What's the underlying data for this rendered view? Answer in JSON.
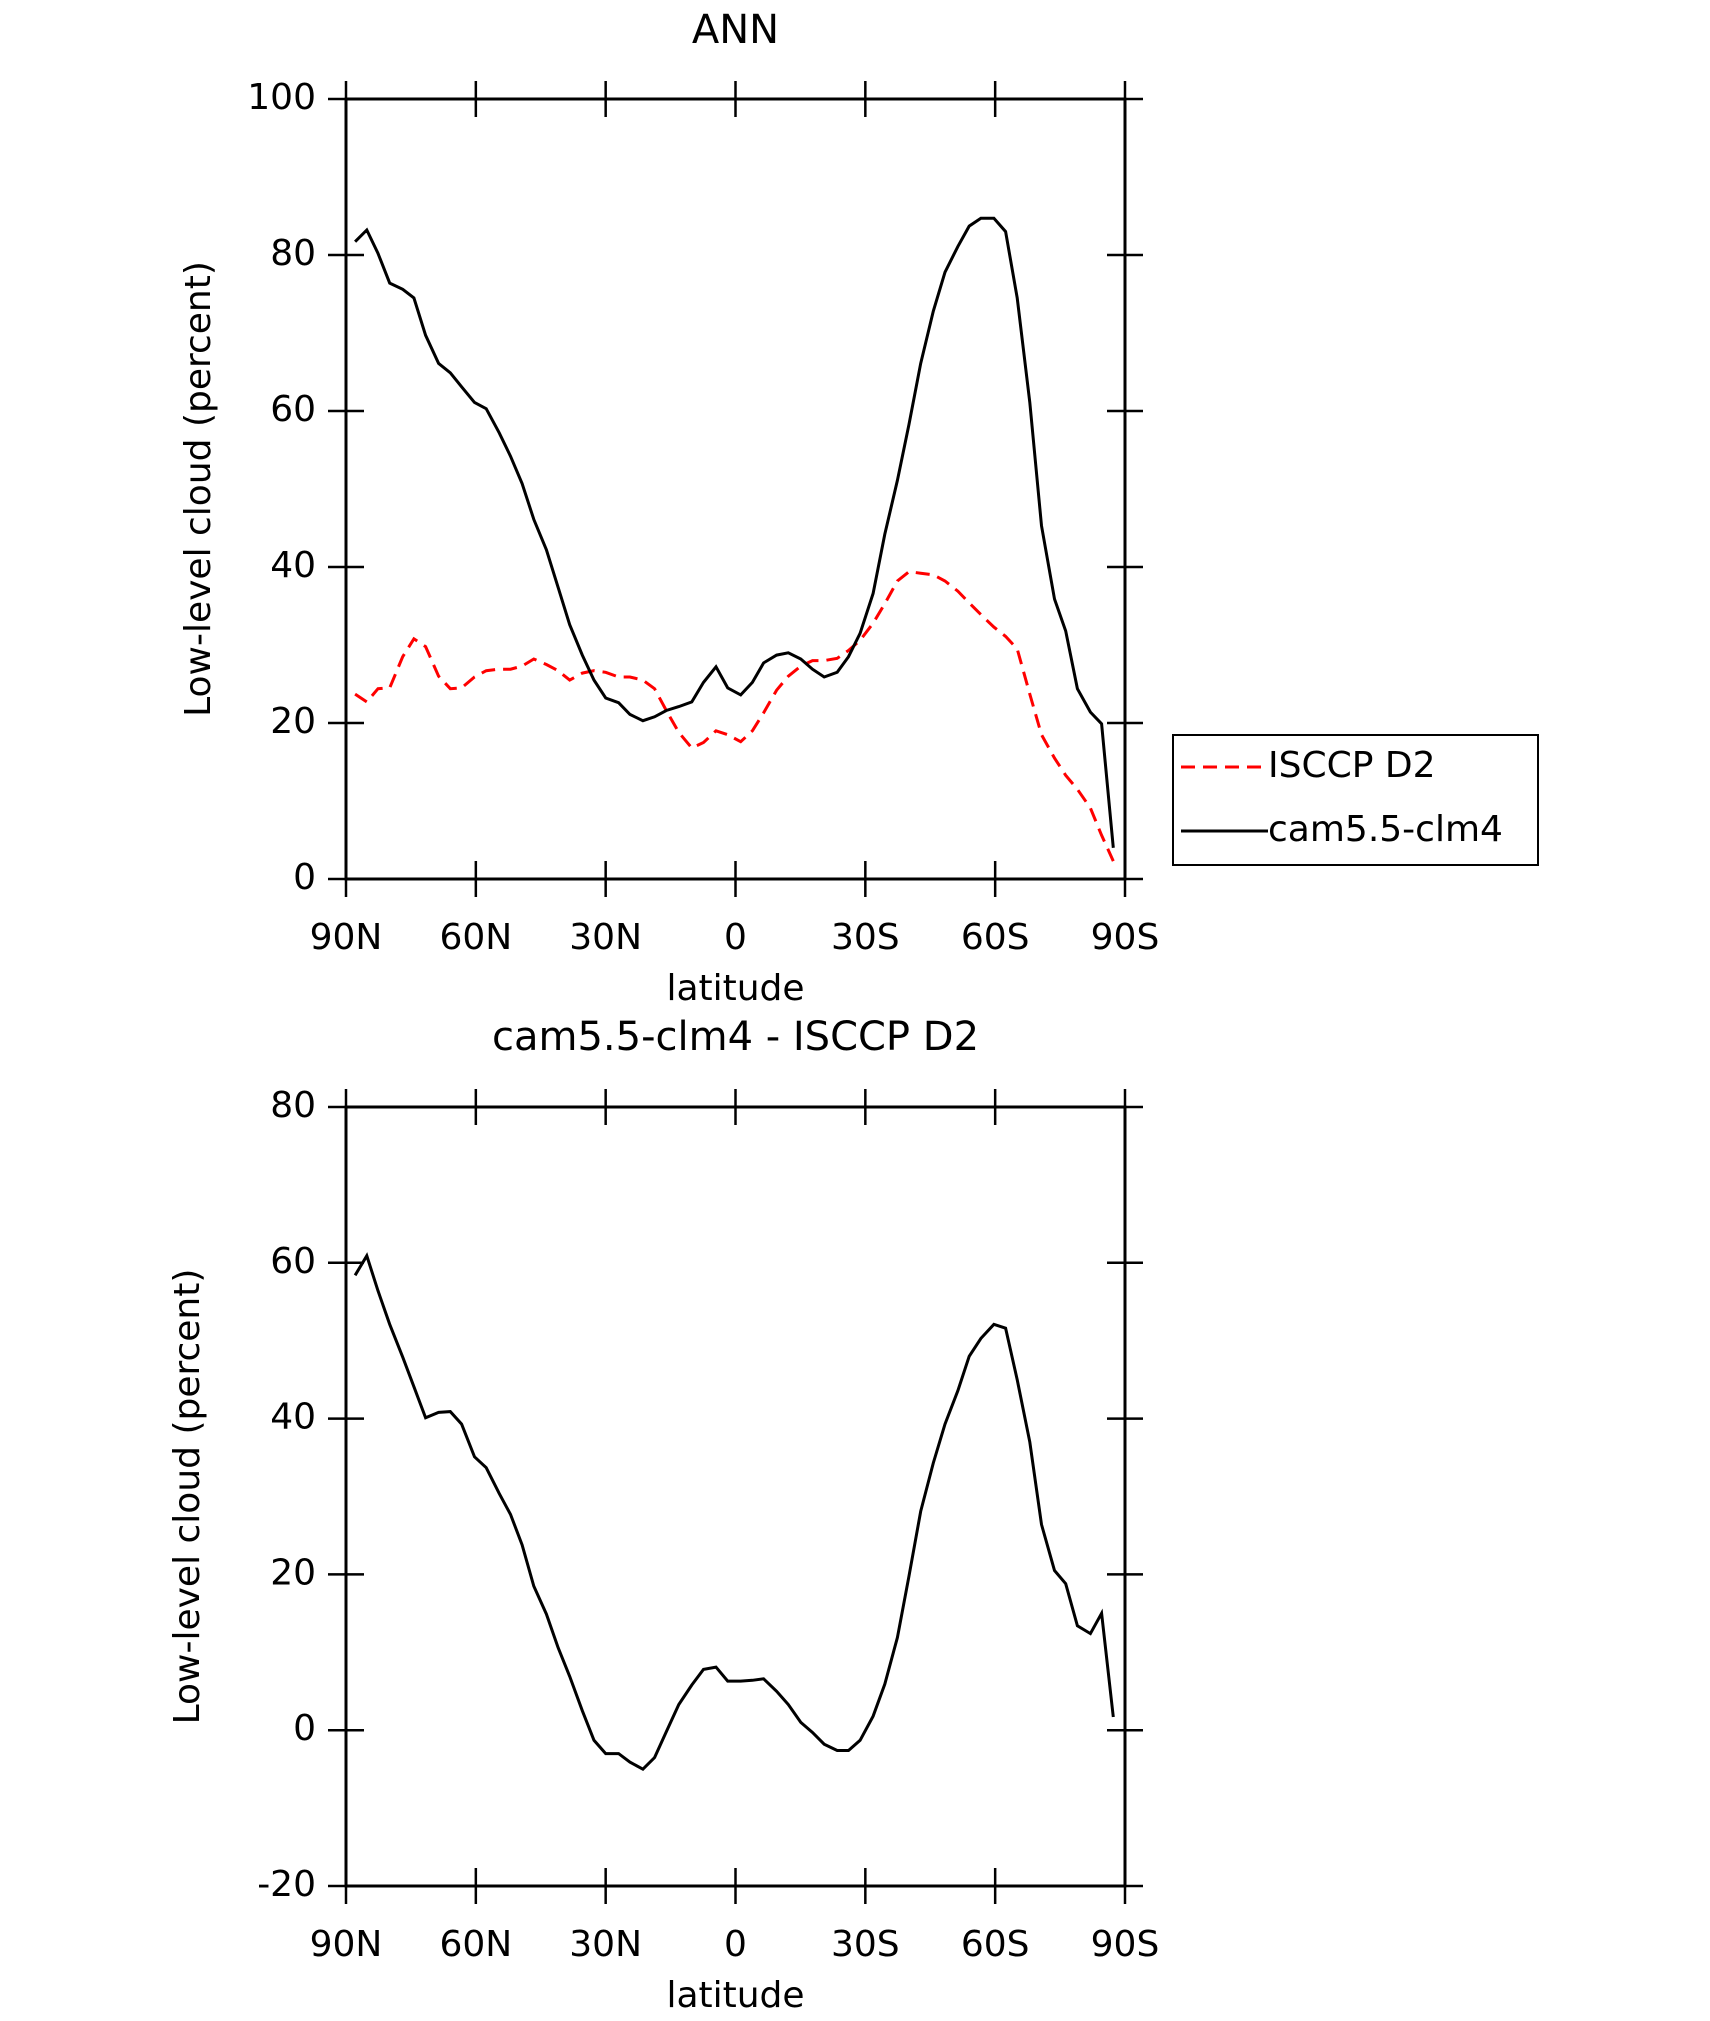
{
  "chart_data": [
    {
      "type": "line",
      "title": "ANN",
      "xlabel": "latitude",
      "ylabel": "Low-level cloud (percent)",
      "xlim": [
        90,
        -90
      ],
      "xticks": [
        {
          "value": 90,
          "label": "90N"
        },
        {
          "value": 60,
          "label": "60N"
        },
        {
          "value": 30,
          "label": "30N"
        },
        0,
        {
          "value": -30,
          "label": "30S"
        },
        {
          "value": -60,
          "label": "60S"
        },
        {
          "value": -90,
          "label": "90S"
        }
      ],
      "ylim": [
        0,
        100
      ],
      "yticks": [
        0,
        20,
        40,
        60,
        80,
        100
      ],
      "legend": "right",
      "x": [
        87.9,
        85.2,
        82.6,
        79.9,
        76.9,
        74.3,
        71.6,
        68.6,
        65.9,
        63.3,
        60.3,
        57.6,
        54.6,
        52,
        49.3,
        46.6,
        43.7,
        41,
        38.3,
        35.4,
        32.7,
        30,
        27,
        24.4,
        21.4,
        18.7,
        16,
        13.1,
        10.1,
        7.4,
        4.5,
        1.8,
        -1.2,
        -3.9,
        -6.5,
        -9.5,
        -12.2,
        -15.1,
        -17.8,
        -20.5,
        -23.5,
        -26.1,
        -28.8,
        -31.8,
        -34.5,
        -37.4,
        -40.1,
        -42.8,
        -45.7,
        -48.4,
        -51.4,
        -54,
        -56.7,
        -59.7,
        -62.4,
        -65.1,
        -68,
        -70.7,
        -73.7,
        -76.3,
        -79,
        -82,
        -84.6,
        -87.3
      ],
      "series": [
        {
          "name": "ISCCP D2",
          "color": "#ff0000",
          "dash": true,
          "values": [
            23.7,
            22.7,
            24.4,
            24.5,
            28.5,
            30.8,
            29.8,
            26.0,
            24.4,
            24.5,
            25.9,
            26.7,
            26.9,
            26.9,
            27.3,
            28.2,
            27.5,
            26.7,
            25.5,
            26.4,
            26.7,
            26.5,
            25.9,
            25.9,
            25.5,
            24.4,
            21.6,
            18.8,
            16.8,
            17.5,
            19.0,
            18.5,
            17.6,
            19.0,
            21.3,
            24.2,
            26.0,
            27.3,
            28.0,
            28.0,
            28.3,
            29.3,
            30.6,
            32.8,
            35.3,
            38.2,
            39.4,
            39.2,
            39.0,
            38.2,
            36.9,
            35.4,
            33.9,
            32.3,
            31.1,
            29.5,
            23.7,
            18.5,
            15.5,
            13.3,
            11.5,
            9.1,
            5.6,
            2.3
          ]
        },
        {
          "name": "cam5.5-clm4",
          "color": "#000000",
          "dash": false,
          "values": [
            81.7,
            83.2,
            80.2,
            76.4,
            75.6,
            74.5,
            69.7,
            66.1,
            64.9,
            63.1,
            61.1,
            60.3,
            57.2,
            54.2,
            50.7,
            46.1,
            42.2,
            37.4,
            32.6,
            28.7,
            25.5,
            23.2,
            22.6,
            21.1,
            20.3,
            20.8,
            21.6,
            22.1,
            22.7,
            25.2,
            27.2,
            24.5,
            23.6,
            25.2,
            27.7,
            28.7,
            29.0,
            28.2,
            26.9,
            25.9,
            26.5,
            28.5,
            31.5,
            36.6,
            44.2,
            51.1,
            58.3,
            66.1,
            72.8,
            77.8,
            81.1,
            83.7,
            84.7,
            84.7,
            83.0,
            74.5,
            61.1,
            45.3,
            35.9,
            31.8,
            24.4,
            21.4,
            19.9,
            4.0
          ]
        }
      ]
    },
    {
      "type": "line",
      "title": "cam5.5-clm4 - ISCCP D2",
      "xlabel": "latitude",
      "ylabel": "Low-level cloud (percent)",
      "xlim": [
        90,
        -90
      ],
      "xticks": [
        {
          "value": 90,
          "label": "90N"
        },
        {
          "value": 60,
          "label": "60N"
        },
        {
          "value": 30,
          "label": "30N"
        },
        0,
        {
          "value": -30,
          "label": "30S"
        },
        {
          "value": -60,
          "label": "60S"
        },
        {
          "value": -90,
          "label": "90S"
        }
      ],
      "ylim": [
        -20,
        80
      ],
      "yticks": [
        -20,
        0,
        20,
        40,
        60,
        80
      ],
      "x": [
        87.9,
        85.2,
        82.6,
        79.9,
        76.9,
        74.3,
        71.6,
        68.6,
        65.9,
        63.3,
        60.3,
        57.6,
        54.6,
        52,
        49.3,
        46.6,
        43.7,
        41,
        38.3,
        35.4,
        32.7,
        30,
        27,
        24.4,
        21.4,
        18.7,
        16,
        13.1,
        10.1,
        7.4,
        4.5,
        1.8,
        -1.2,
        -3.9,
        -6.5,
        -9.5,
        -12.2,
        -15.1,
        -17.8,
        -20.5,
        -23.5,
        -26.1,
        -28.8,
        -31.8,
        -34.5,
        -37.4,
        -40.1,
        -42.8,
        -45.7,
        -48.4,
        -51.4,
        -54,
        -56.7,
        -59.7,
        -62.4,
        -65.1,
        -68,
        -70.7,
        -73.7,
        -76.3,
        -79,
        -82,
        -84.6,
        -87.3
      ],
      "series": [
        {
          "color": "#000000",
          "dash": false,
          "values": [
            58.4,
            60.9,
            56.4,
            52.1,
            47.9,
            44.1,
            40.1,
            40.8,
            40.9,
            39.3,
            35.1,
            33.7,
            30.4,
            27.7,
            23.8,
            18.5,
            14.9,
            10.6,
            6.9,
            2.5,
            -1.3,
            -3.0,
            -3.0,
            -4.1,
            -5.0,
            -3.5,
            -0.2,
            3.3,
            5.8,
            7.8,
            8.1,
            6.3,
            6.3,
            6.4,
            6.6,
            5.0,
            3.3,
            1.0,
            -0.3,
            -1.8,
            -2.6,
            -2.6,
            -1.3,
            1.8,
            5.9,
            11.9,
            19.8,
            28.1,
            34.3,
            39.3,
            43.6,
            48.0,
            50.3,
            52.1,
            51.6,
            45.0,
            37.0,
            26.4,
            20.5,
            18.8,
            13.4,
            12.4,
            15.0,
            1.7
          ]
        }
      ]
    }
  ]
}
